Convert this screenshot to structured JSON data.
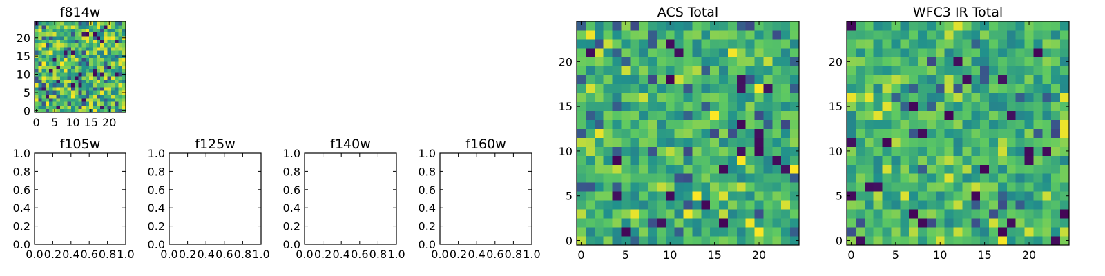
{
  "figure_title": "",
  "colormap": [
    "#440154",
    "#3b528b",
    "#21918c",
    "#5ec962",
    "#fde725"
  ],
  "chart_data": [
    {
      "type": "heatmap",
      "title": "f814w",
      "grid": [
        25,
        25
      ],
      "xlim": [
        0,
        25
      ],
      "ylim": [
        0,
        25
      ],
      "xticks": [
        0,
        5,
        10,
        15,
        20
      ],
      "yticks": [
        0,
        5,
        10,
        15,
        20
      ],
      "seed": 11,
      "style": "noisy"
    },
    {
      "type": "empty",
      "title": "f105w",
      "xlim": [
        0,
        1
      ],
      "ylim": [
        0,
        1
      ],
      "xticks": [
        "0.0",
        "0.2",
        "0.4",
        "0.6",
        "0.8",
        "1.0"
      ],
      "yticks": [
        "0.0",
        "0.2",
        "0.4",
        "0.6",
        "0.8",
        "1.0"
      ]
    },
    {
      "type": "empty",
      "title": "f125w",
      "xlim": [
        0,
        1
      ],
      "ylim": [
        0,
        1
      ],
      "xticks": [
        "0.0",
        "0.2",
        "0.4",
        "0.6",
        "0.8",
        "1.0"
      ],
      "yticks": [
        "0.0",
        "0.2",
        "0.4",
        "0.6",
        "0.8",
        "1.0"
      ]
    },
    {
      "type": "empty",
      "title": "f140w",
      "xlim": [
        0,
        1
      ],
      "ylim": [
        0,
        1
      ],
      "xticks": [
        "0.0",
        "0.2",
        "0.4",
        "0.6",
        "0.8",
        "1.0"
      ],
      "yticks": [
        "0.0",
        "0.2",
        "0.4",
        "0.6",
        "0.8",
        "1.0"
      ]
    },
    {
      "type": "empty",
      "title": "f160w",
      "xlim": [
        0,
        1
      ],
      "ylim": [
        0,
        1
      ],
      "xticks": [
        "0.0",
        "0.2",
        "0.4",
        "0.6",
        "0.8",
        "1.0"
      ],
      "yticks": [
        "0.0",
        "0.2",
        "0.4",
        "0.6",
        "0.8",
        "1.0"
      ]
    },
    {
      "type": "heatmap",
      "title": "ACS Total",
      "grid": [
        25,
        25
      ],
      "xlim": [
        0,
        25
      ],
      "ylim": [
        0,
        25
      ],
      "xticks": [
        0,
        5,
        10,
        15,
        20
      ],
      "yticks": [
        0,
        5,
        10,
        15,
        20
      ],
      "seed": 23,
      "style": "smooth"
    },
    {
      "type": "heatmap",
      "title": "WFC3 IR Total",
      "grid": [
        25,
        25
      ],
      "xlim": [
        0,
        25
      ],
      "ylim": [
        0,
        25
      ],
      "xticks": [
        0,
        5,
        10,
        15,
        20
      ],
      "yticks": [
        0,
        5,
        10,
        15,
        20
      ],
      "seed": 37,
      "style": "smooth"
    }
  ]
}
